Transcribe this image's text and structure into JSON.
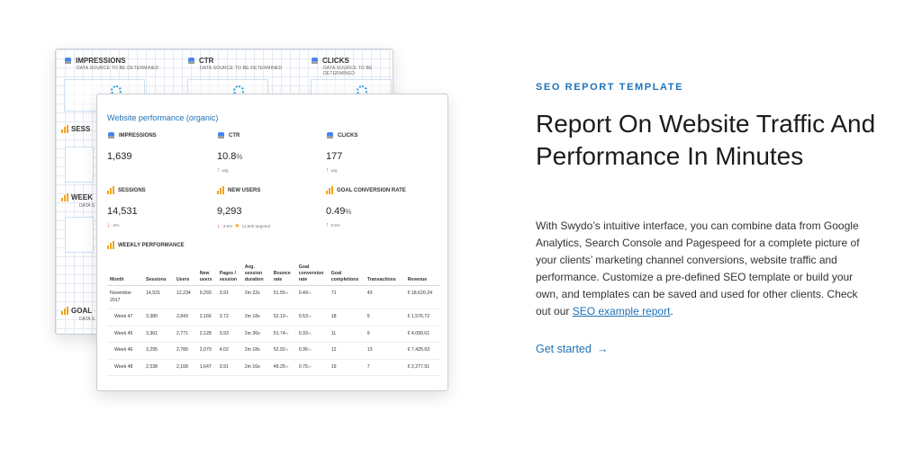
{
  "back_card": {
    "metrics": [
      {
        "label": "IMPRESSIONS",
        "sub": "DATA SOURCE TO BE DETERMINED"
      },
      {
        "label": "CTR",
        "sub": "DATA SOURCE TO BE DETERMINED"
      },
      {
        "label": "CLICKS",
        "sub": "DATA SOURCE TO BE DETERMINED"
      }
    ],
    "side_labels": [
      "SESS",
      "WEEK",
      "GOAL"
    ],
    "side_sub": "DATA S"
  },
  "front_card": {
    "title": "Website performance (organic)",
    "metrics": [
      {
        "label": "IMPRESSIONS",
        "value": "1,639",
        "unit": "",
        "change": ""
      },
      {
        "label": "CTR",
        "value": "10.8",
        "unit": "%",
        "change": "w/g"
      },
      {
        "label": "CLICKS",
        "value": "177",
        "unit": "",
        "change": "w/g"
      },
      {
        "label": "SESSIONS",
        "value": "14,531",
        "unit": "",
        "change": "-2%"
      },
      {
        "label": "NEW USERS",
        "value": "9,293",
        "unit": "",
        "change": "-3.5%",
        "target": "12,500 targeted"
      },
      {
        "label": "GOAL CONVERSION RATE",
        "value": "0.49",
        "unit": "%",
        "change": "8.5%"
      }
    ],
    "weekly_label": "WEEKLY PERFORMANCE",
    "table": {
      "headers": [
        "Month",
        "Sessions",
        "Users",
        "New users",
        "Pages / session",
        "Avg. session duration",
        "Bounce rate",
        "Goal conversion rate",
        "Goal completions",
        "Transactions",
        "Revenue"
      ],
      "rows": [
        [
          "November 2017",
          "14,531",
          "12,234",
          "9,293",
          "3.91",
          "2m 22s",
          "51.55",
          "0.49",
          "71",
          "43",
          "€ 18,620.24"
        ],
        [
          "Week 47",
          "3,380",
          "2,843",
          "2,166",
          "3.72",
          "2m 18s",
          "52.13",
          "0.53",
          "18",
          "5",
          "€ 1,576.72"
        ],
        [
          "Week 45",
          "3,361",
          "2,771",
          "2,128",
          "3.93",
          "2m 36s",
          "51.74",
          "0.33",
          "11",
          "9",
          "€ 4,090.61"
        ],
        [
          "Week 46",
          "3,295",
          "2,780",
          "2,070",
          "4.02",
          "2m 18s",
          "52.02",
          "0.36",
          "12",
          "13",
          "€ 7,425.93"
        ],
        [
          "Week 48",
          "2,538",
          "2,168",
          "1,647",
          "3.91",
          "2m 16s",
          "49.25",
          "0.75",
          "19",
          "7",
          "€ 2,277.91"
        ]
      ]
    }
  },
  "right": {
    "eyebrow": "SEO REPORT TEMPLATE",
    "headline": "Report On Website Traffic And Performance In Minutes",
    "body_before_link": "With Swydo’s intuitive interface, you can combine data from Google Analytics, Search Console and Pagespeed for a complete picture of your clients’ marketing channel conversions, website traffic and performance. Customize a pre-defined SEO template or build your own, and templates can be saved and used for other clients. Check out our ",
    "body_link": "SEO example report",
    "body_after_link": ".",
    "cta": "Get started",
    "cta_arrow": "→"
  },
  "colors": {
    "accent": "#1f72b8",
    "up": "#3aa935",
    "down": "#d83a2f",
    "analytics": "#f4a21d"
  }
}
